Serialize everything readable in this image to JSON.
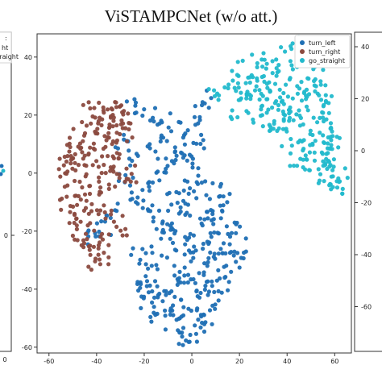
{
  "figure": {
    "title": "ViSTAMPCNet (w/o att.)",
    "left_panel_fragment": {
      "legend_fragments": [
        ":",
        "ht",
        "straight"
      ],
      "ytick_fragment": "0",
      "xtick_fragment": "0"
    },
    "right_panel_fragment": {
      "yticks": [
        "40",
        "20",
        "0",
        "-20",
        "-40",
        "-60"
      ]
    }
  },
  "chart_data": {
    "type": "scatter",
    "title": "ViSTAMPCNet (w/o att.)",
    "xlabel": "",
    "ylabel": "",
    "xlim": [
      -65,
      67
    ],
    "ylim": [
      -62,
      48
    ],
    "xticks": [
      -60,
      -40,
      -20,
      0,
      20,
      40,
      60
    ],
    "yticks": [
      -60,
      -40,
      -20,
      0,
      20,
      40
    ],
    "grid": false,
    "legend_position": "top-right",
    "series": [
      {
        "name": "turn_left",
        "color": "#1f6fb4",
        "clusters": [
          {
            "points": [
              [
                -25,
                22
              ],
              [
                -18,
                20
              ],
              [
                -12,
                18
              ],
              [
                -5,
                15
              ],
              [
                2,
                20
              ],
              [
                6,
                26
              ],
              [
                4,
                10
              ],
              [
                -3,
                5
              ],
              [
                -8,
                2
              ],
              [
                -13,
                -2
              ],
              [
                -19,
                -6
              ],
              [
                -24,
                -8
              ],
              [
                -28,
                -3
              ],
              [
                -33,
                -12
              ],
              [
                -37,
                -20
              ],
              [
                -42,
                -22
              ],
              [
                -18,
                -12
              ],
              [
                -13,
                -16
              ],
              [
                -8,
                -10
              ],
              [
                -2,
                -8
              ],
              [
                4,
                -6
              ],
              [
                10,
                -6
              ],
              [
                15,
                -10
              ],
              [
                18,
                -18
              ],
              [
                14,
                -24
              ],
              [
                8,
                -22
              ],
              [
                2,
                -18
              ],
              [
                -4,
                -22
              ],
              [
                -10,
                -26
              ],
              [
                -16,
                -30
              ],
              [
                -20,
                -36
              ],
              [
                -18,
                -44
              ],
              [
                -14,
                -48
              ],
              [
                -8,
                -52
              ],
              [
                -4,
                -56
              ],
              [
                0,
                -58
              ],
              [
                2,
                -52
              ],
              [
                -2,
                -46
              ],
              [
                4,
                -40
              ],
              [
                8,
                -44
              ],
              [
                12,
                -38
              ],
              [
                6,
                -34
              ],
              [
                0,
                -30
              ],
              [
                -6,
                -34
              ],
              [
                12,
                -30
              ],
              [
                18,
                -30
              ],
              [
                20,
                -26
              ],
              [
                0,
                -36
              ],
              [
                -6,
                -40
              ],
              [
                -12,
                -44
              ]
            ]
          },
          {
            "points": [
              [
                -30,
                10
              ],
              [
                -26,
                5
              ],
              [
                -16,
                8
              ],
              [
                -10,
                12
              ],
              [
                -6,
                8
              ],
              [
                0,
                0
              ],
              [
                -10,
                -18
              ],
              [
                -15,
                -22
              ],
              [
                -22,
                -28
              ],
              [
                -2,
                -12
              ],
              [
                8,
                -14
              ],
              [
                12,
                -16
              ],
              [
                4,
                -28
              ],
              [
                -8,
                -48
              ],
              [
                2,
                -44
              ],
              [
                14,
                -34
              ],
              [
                10,
                -26
              ],
              [
                -14,
                -40
              ],
              [
                -20,
                -40
              ],
              [
                6,
                -50
              ]
            ]
          }
        ]
      },
      {
        "name": "turn_right",
        "color": "#8b4a3f",
        "clusters": [
          {
            "points": [
              [
                -48,
                4
              ],
              [
                -52,
                8
              ],
              [
                -50,
                -2
              ],
              [
                -46,
                -8
              ],
              [
                -48,
                -14
              ],
              [
                -50,
                -20
              ],
              [
                -46,
                -24
              ],
              [
                -42,
                -26
              ],
              [
                -38,
                -22
              ],
              [
                -40,
                -14
              ],
              [
                -44,
                -4
              ],
              [
                -40,
                6
              ],
              [
                -36,
                12
              ],
              [
                -32,
                16
              ],
              [
                -36,
                20
              ],
              [
                -40,
                22
              ],
              [
                -30,
                22
              ],
              [
                -26,
                18
              ],
              [
                -32,
                8
              ],
              [
                -36,
                2
              ],
              [
                -30,
                -2
              ],
              [
                -26,
                0
              ],
              [
                -38,
                -6
              ],
              [
                -42,
                0
              ],
              [
                -44,
                10
              ],
              [
                -48,
                12
              ],
              [
                -52,
                -10
              ],
              [
                -54,
                2
              ],
              [
                -34,
                -14
              ],
              [
                -30,
                -18
              ],
              [
                -28,
                14
              ],
              [
                -34,
                4
              ],
              [
                -42,
                16
              ],
              [
                -46,
                -16
              ],
              [
                -36,
                -28
              ],
              [
                -40,
                -30
              ],
              [
                -50,
                6
              ],
              [
                -32,
                20
              ],
              [
                -44,
                20
              ],
              [
                -38,
                14
              ]
            ]
          }
        ]
      },
      {
        "name": "go_straight",
        "color": "#22b9cc",
        "clusters": [
          {
            "points": [
              [
                10,
                28
              ],
              [
                16,
                32
              ],
              [
                22,
                36
              ],
              [
                28,
                40
              ],
              [
                34,
                38
              ],
              [
                40,
                42
              ],
              [
                46,
                44
              ],
              [
                50,
                40
              ],
              [
                52,
                34
              ],
              [
                50,
                28
              ],
              [
                54,
                22
              ],
              [
                58,
                16
              ],
              [
                60,
                10
              ],
              [
                58,
                4
              ],
              [
                60,
                -2
              ],
              [
                60,
                -6
              ],
              [
                56,
                0
              ],
              [
                52,
                8
              ],
              [
                48,
                14
              ],
              [
                44,
                20
              ],
              [
                38,
                22
              ],
              [
                34,
                28
              ],
              [
                28,
                30
              ],
              [
                22,
                26
              ],
              [
                18,
                22
              ],
              [
                26,
                20
              ],
              [
                32,
                18
              ],
              [
                40,
                12
              ],
              [
                44,
                6
              ],
              [
                50,
                2
              ],
              [
                54,
                10
              ],
              [
                46,
                30
              ],
              [
                38,
                32
              ],
              [
                30,
                34
              ],
              [
                24,
                30
              ],
              [
                56,
                24
              ],
              [
                48,
                24
              ],
              [
                40,
                26
              ],
              [
                36,
                16
              ],
              [
                52,
                16
              ],
              [
                58,
                10
              ],
              [
                44,
                36
              ],
              [
                54,
                30
              ],
              [
                34,
                22
              ],
              [
                30,
                26
              ],
              [
                42,
                18
              ],
              [
                48,
                8
              ],
              [
                56,
                4
              ],
              [
                62,
                0
              ],
              [
                20,
                30
              ]
            ]
          }
        ]
      }
    ]
  }
}
